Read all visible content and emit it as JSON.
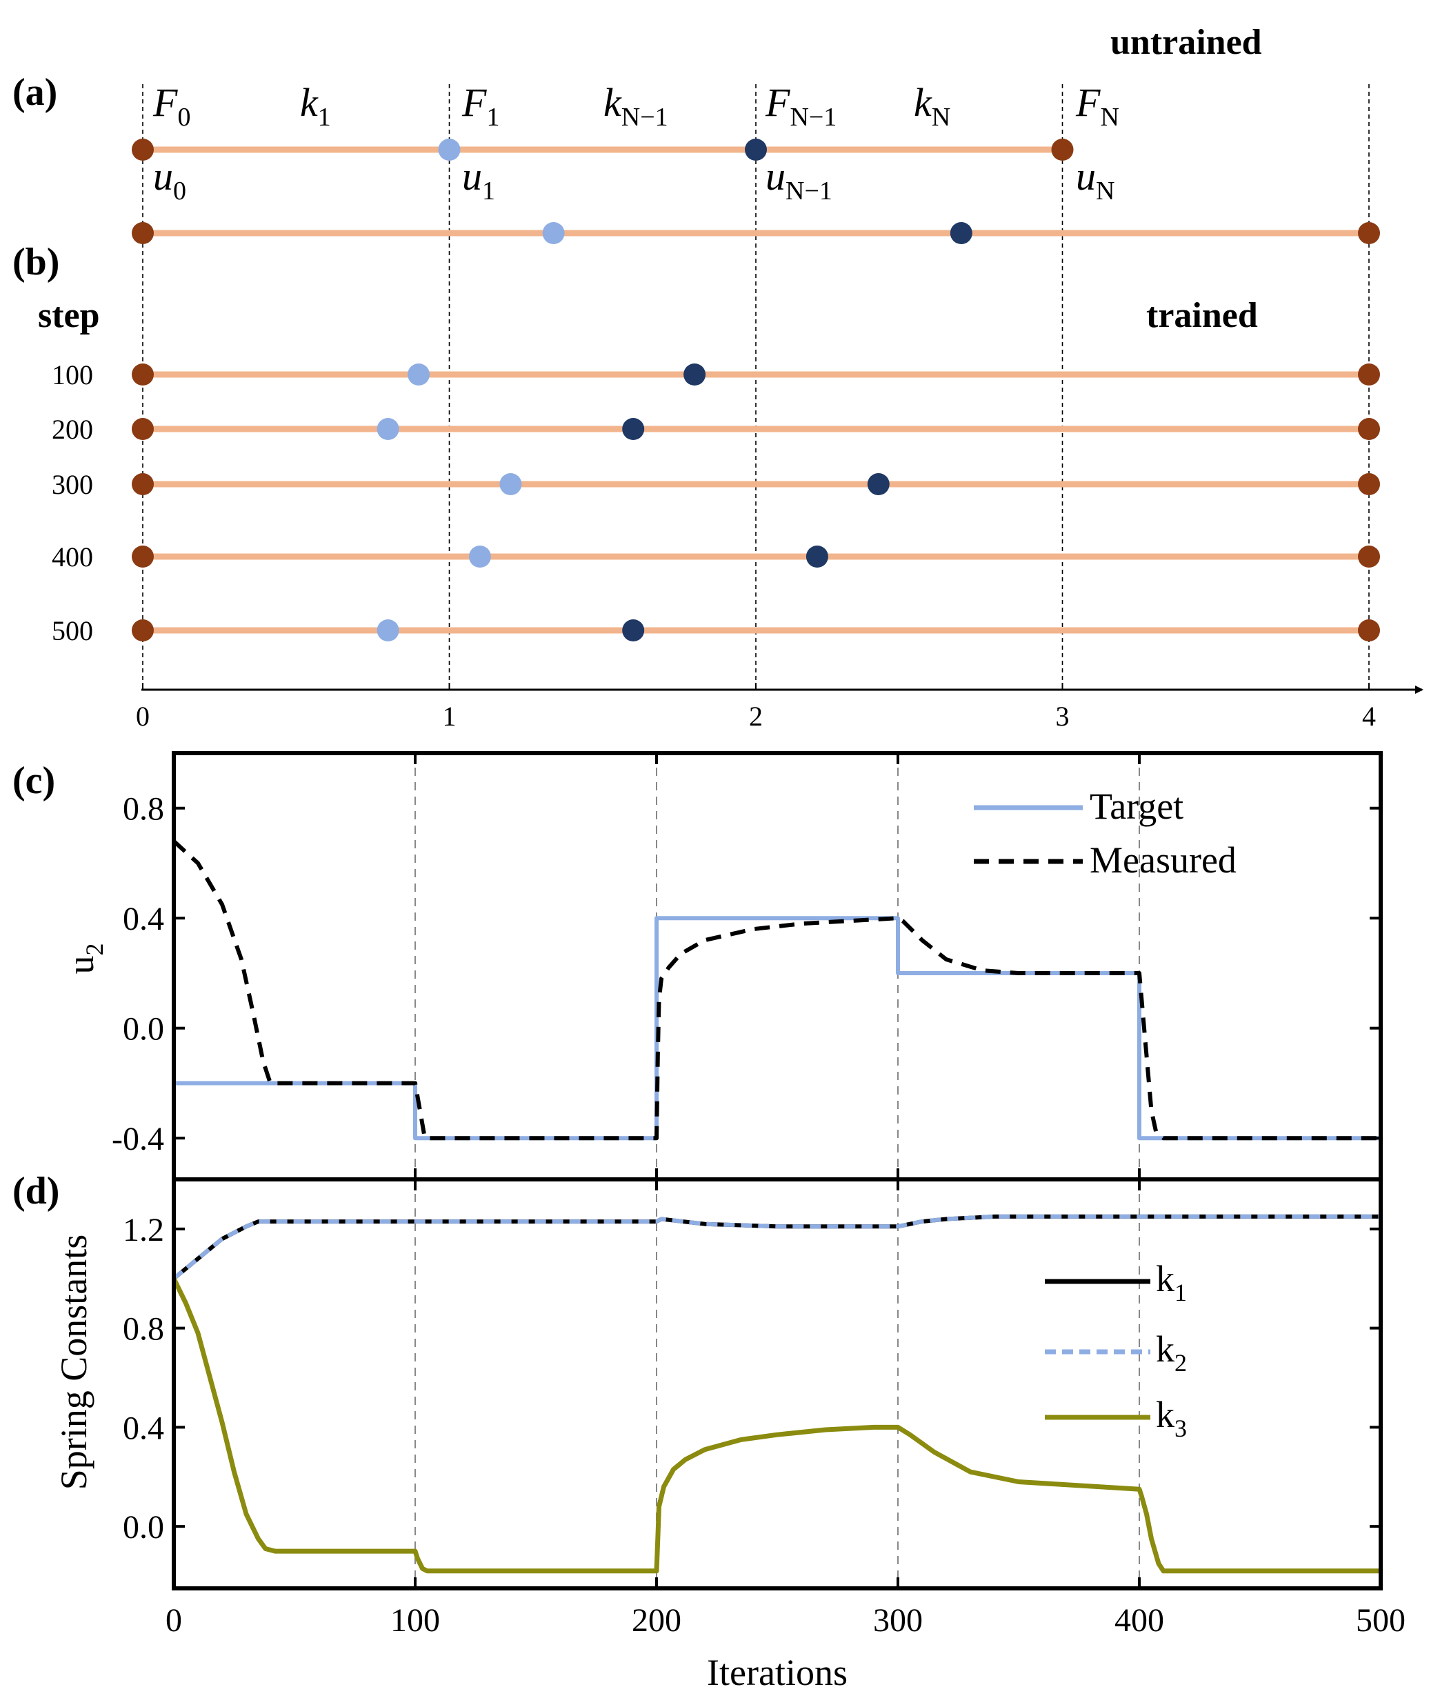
{
  "colors": {
    "spring": "#F2B48C",
    "wall": "#8B3A12",
    "node_light": "#8EADE3",
    "node_dark": "#1F3864",
    "target": "#8EADE3",
    "measured": "#000000",
    "k1": "#000000",
    "k2": "#8EADE3",
    "k3": "#8B8B0F"
  },
  "panel_a": {
    "label": "(a)",
    "tag": "untrained",
    "forces": [
      {
        "base": "F",
        "sub": "0"
      },
      {
        "base": "F",
        "sub": "1"
      },
      {
        "base": "F",
        "sub": "N−1"
      },
      {
        "base": "F",
        "sub": "N"
      }
    ],
    "springs": [
      {
        "base": "k",
        "sub": "1"
      },
      {
        "base": "k",
        "sub": "N−1"
      },
      {
        "base": "k",
        "sub": "N"
      }
    ],
    "displacements": [
      {
        "base": "u",
        "sub": "0"
      },
      {
        "base": "u",
        "sub": "1"
      },
      {
        "base": "u",
        "sub": "N−1"
      },
      {
        "base": "u",
        "sub": "N"
      }
    ],
    "nodes": [
      0,
      1,
      2,
      3
    ],
    "untrained_chain": [
      0,
      1.34,
      2.67,
      4
    ]
  },
  "panel_b": {
    "label": "(b)",
    "step_header": "step",
    "tag": "trained",
    "rows": [
      {
        "step": "100",
        "nodes": [
          0,
          0.9,
          1.8,
          4
        ]
      },
      {
        "step": "200",
        "nodes": [
          0,
          0.8,
          1.6,
          4
        ]
      },
      {
        "step": "300",
        "nodes": [
          0,
          1.2,
          2.4,
          4
        ]
      },
      {
        "step": "400",
        "nodes": [
          0,
          1.1,
          2.2,
          4
        ]
      },
      {
        "step": "500",
        "nodes": [
          0,
          0.8,
          1.6,
          4
        ]
      }
    ],
    "axis_ticks": [
      "0",
      "1",
      "2",
      "3",
      "4"
    ]
  },
  "chart_data": [
    {
      "panel": "(c)",
      "type": "line",
      "ylabel": "u",
      "ylabel_sub": "2",
      "xlim": [
        0,
        500
      ],
      "ylim": [
        -0.55,
        1.0
      ],
      "yticks": [
        -0.4,
        0.0,
        0.4,
        0.8
      ],
      "ytick_labels": [
        "-0.4",
        "0.0",
        "0.4",
        "0.8"
      ],
      "vlines": [
        100,
        200,
        300,
        400
      ],
      "legend": [
        "Target",
        "Measured"
      ],
      "series": [
        {
          "name": "Target",
          "style": "solid",
          "x": [
            0,
            100,
            100,
            200,
            200,
            300,
            300,
            400,
            400,
            500
          ],
          "y": [
            -0.2,
            -0.2,
            -0.4,
            -0.4,
            0.4,
            0.4,
            0.2,
            0.2,
            -0.4,
            -0.4
          ]
        },
        {
          "name": "Measured",
          "style": "dashed",
          "x": [
            0,
            10,
            20,
            28,
            33,
            37,
            40,
            60,
            100,
            101,
            104,
            110,
            200,
            200.5,
            201,
            202,
            205,
            210,
            220,
            240,
            260,
            300,
            302,
            310,
            320,
            335,
            350,
            400,
            401,
            403,
            405,
            407,
            410,
            450,
            500
          ],
          "y": [
            0.68,
            0.6,
            0.45,
            0.25,
            0.05,
            -0.12,
            -0.2,
            -0.2,
            -0.2,
            -0.25,
            -0.4,
            -0.4,
            -0.4,
            -0.1,
            0.1,
            0.18,
            0.22,
            0.27,
            0.32,
            0.36,
            0.38,
            0.4,
            0.39,
            0.32,
            0.25,
            0.21,
            0.2,
            0.2,
            0.1,
            -0.1,
            -0.3,
            -0.38,
            -0.4,
            -0.4,
            -0.4
          ]
        }
      ]
    },
    {
      "panel": "(d)",
      "type": "line",
      "xlabel": "Iterations",
      "ylabel": "Spring Constants",
      "xlim": [
        0,
        500
      ],
      "ylim": [
        -0.25,
        1.4
      ],
      "xticks": [
        0,
        100,
        200,
        300,
        400,
        500
      ],
      "xtick_labels": [
        "0",
        "100",
        "200",
        "300",
        "400",
        "500"
      ],
      "yticks": [
        0.0,
        0.4,
        0.8,
        1.2
      ],
      "ytick_labels": [
        "0.0",
        "0.4",
        "0.8",
        "1.2"
      ],
      "vlines": [
        100,
        200,
        300,
        400
      ],
      "legend": [
        {
          "base": "k",
          "sub": "1"
        },
        {
          "base": "k",
          "sub": "2"
        },
        {
          "base": "k",
          "sub": "3"
        }
      ],
      "series": [
        {
          "name": "k1",
          "style": "solid",
          "x": [
            0,
            10,
            20,
            30,
            35,
            100,
            200,
            202,
            220,
            250,
            280,
            300,
            310,
            320,
            330,
            340,
            360,
            400,
            500
          ],
          "y": [
            1.0,
            1.08,
            1.16,
            1.21,
            1.23,
            1.23,
            1.23,
            1.24,
            1.22,
            1.21,
            1.21,
            1.21,
            1.23,
            1.24,
            1.245,
            1.25,
            1.25,
            1.25,
            1.25
          ]
        },
        {
          "name": "k2",
          "style": "dashed",
          "x": [
            0,
            10,
            20,
            30,
            35,
            100,
            200,
            202,
            220,
            250,
            280,
            300,
            310,
            320,
            330,
            340,
            360,
            400,
            500
          ],
          "y": [
            1.0,
            1.08,
            1.16,
            1.21,
            1.23,
            1.23,
            1.23,
            1.24,
            1.22,
            1.21,
            1.21,
            1.21,
            1.23,
            1.24,
            1.245,
            1.25,
            1.25,
            1.25,
            1.25
          ]
        },
        {
          "name": "k3",
          "style": "solid",
          "x": [
            0,
            5,
            10,
            15,
            20,
            25,
            30,
            35,
            38,
            42,
            100,
            101,
            103,
            105,
            200,
            200.5,
            201,
            203,
            207,
            212,
            220,
            235,
            250,
            270,
            290,
            300,
            305,
            315,
            330,
            350,
            400,
            401,
            403,
            405,
            408,
            410,
            500
          ],
          "y": [
            1.0,
            0.9,
            0.78,
            0.6,
            0.42,
            0.22,
            0.05,
            -0.05,
            -0.09,
            -0.1,
            -0.1,
            -0.13,
            -0.17,
            -0.18,
            -0.18,
            -0.05,
            0.08,
            0.16,
            0.23,
            0.27,
            0.31,
            0.35,
            0.37,
            0.39,
            0.4,
            0.4,
            0.37,
            0.3,
            0.22,
            0.18,
            0.15,
            0.12,
            0.05,
            -0.05,
            -0.15,
            -0.18,
            -0.18
          ]
        }
      ]
    }
  ]
}
